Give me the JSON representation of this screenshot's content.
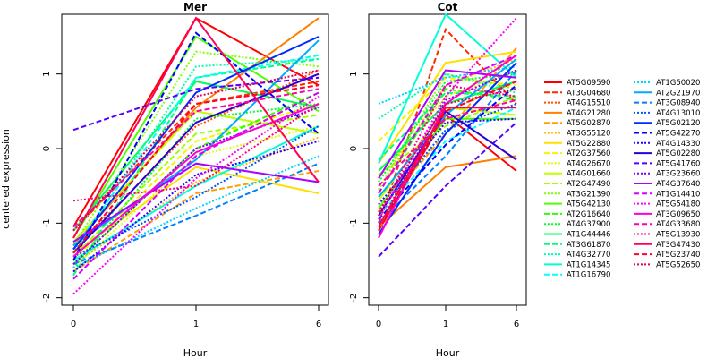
{
  "chart_data": {
    "type": "line",
    "ylabel": "centered expression",
    "xlabel": "Hour",
    "x_ticks": [
      "0",
      "1",
      "6"
    ],
    "y_ticks": [
      "-2",
      "-1",
      "0",
      "1"
    ],
    "ylim": [
      -2.1,
      1.8
    ],
    "legend_position": "right",
    "panels": [
      {
        "title": "Mer"
      },
      {
        "title": "Cot"
      }
    ],
    "series": [
      {
        "name": "AT5G09590",
        "color": "#FF0000",
        "dash": "solid",
        "mer": [
          -1.05,
          1.75,
          0.85
        ],
        "cot": [
          -1.1,
          0.45,
          -0.3
        ]
      },
      {
        "name": "AT3G04680",
        "color": "#FF2A00",
        "dash": "dash",
        "mer": [
          -1.1,
          0.6,
          0.9
        ],
        "cot": [
          -1.0,
          1.6,
          0.6
        ]
      },
      {
        "name": "AT4G15510",
        "color": "#FF4F00",
        "dash": "dot",
        "mer": [
          -1.35,
          0.3,
          1.05
        ],
        "cot": [
          -0.9,
          0.5,
          0.9
        ]
      },
      {
        "name": "AT4G21280",
        "color": "#FF7F00",
        "dash": "solid",
        "mer": [
          -1.3,
          0.55,
          1.75
        ],
        "cot": [
          -1.05,
          -0.25,
          -0.1
        ]
      },
      {
        "name": "AT5G02870",
        "color": "#FF9F00",
        "dash": "dash",
        "mer": [
          -1.65,
          -0.6,
          -0.3
        ],
        "cot": [
          -0.85,
          0.2,
          1.35
        ]
      },
      {
        "name": "AT3G55120",
        "color": "#FFBF00",
        "dash": "dot",
        "mer": [
          -1.55,
          -0.45,
          0.15
        ],
        "cot": [
          -0.55,
          0.85,
          1.2
        ]
      },
      {
        "name": "AT5G22880",
        "color": "#FFDF00",
        "dash": "solid",
        "mer": [
          -1.4,
          -0.25,
          -0.6
        ],
        "cot": [
          -0.2,
          1.15,
          1.3
        ]
      },
      {
        "name": "AT2G37560",
        "color": "#F5F500",
        "dash": "dash",
        "mer": [
          -1.5,
          0.1,
          0.6
        ],
        "cot": [
          0.1,
          0.95,
          0.85
        ]
      },
      {
        "name": "AT4G26670",
        "color": "#DFFF00",
        "dash": "dot",
        "mer": [
          -1.6,
          -0.1,
          0.3
        ],
        "cot": [
          -0.4,
          0.7,
          1.05
        ]
      },
      {
        "name": "AT4G01660",
        "color": "#BFFF00",
        "dash": "solid",
        "mer": [
          -1.25,
          0.5,
          0.2
        ],
        "cot": [
          -0.7,
          0.55,
          0.45
        ]
      },
      {
        "name": "AT2G47490",
        "color": "#9FFF00",
        "dash": "dash",
        "mer": [
          -1.45,
          0.2,
          0.45
        ],
        "cot": [
          -0.35,
          0.3,
          0.7
        ]
      },
      {
        "name": "AT3G21390",
        "color": "#7FFF00",
        "dash": "dot",
        "mer": [
          -1.3,
          1.3,
          1.1
        ],
        "cot": [
          -0.55,
          1.0,
          0.8
        ]
      },
      {
        "name": "AT5G42130",
        "color": "#4FFF00",
        "dash": "solid",
        "mer": [
          -1.2,
          1.5,
          0.5
        ],
        "cot": [
          -0.8,
          0.4,
          0.4
        ]
      },
      {
        "name": "AT2G16640",
        "color": "#2AFF00",
        "dash": "dash",
        "mer": [
          -1.55,
          0.0,
          0.75
        ],
        "cot": [
          -0.6,
          0.8,
          0.65
        ]
      },
      {
        "name": "AT4G37900",
        "color": "#00FF2A",
        "dash": "dot",
        "mer": [
          -1.6,
          0.4,
          0.6
        ],
        "cot": [
          -0.45,
          0.9,
          1.0
        ]
      },
      {
        "name": "AT1G44446",
        "color": "#00FF55",
        "dash": "solid",
        "mer": [
          -1.1,
          0.9,
          0.55
        ],
        "cot": [
          -0.3,
          0.6,
          0.9
        ]
      },
      {
        "name": "AT3G61870",
        "color": "#00FF7F",
        "dash": "dash",
        "mer": [
          -1.7,
          0.95,
          1.2
        ],
        "cot": [
          -0.15,
          0.75,
          0.7
        ]
      },
      {
        "name": "AT4G32770",
        "color": "#00FFAA",
        "dash": "dot",
        "mer": [
          -1.4,
          1.1,
          1.2
        ],
        "cot": [
          0.4,
          1.0,
          0.75
        ]
      },
      {
        "name": "AT1G14345",
        "color": "#00FFD4",
        "dash": "solid",
        "mer": [
          -1.5,
          -0.5,
          0.3
        ],
        "cot": [
          -0.2,
          1.8,
          0.95
        ]
      },
      {
        "name": "AT1G16790",
        "color": "#00FFFF",
        "dash": "dash",
        "mer": [
          -1.35,
          0.95,
          1.25
        ],
        "cot": [
          -0.9,
          0.1,
          0.55
        ]
      },
      {
        "name": "AT1G50020",
        "color": "#00D4FF",
        "dash": "dot",
        "mer": [
          -1.6,
          -0.8,
          -0.1
        ],
        "cot": [
          0.6,
          0.95,
          1.1
        ]
      },
      {
        "name": "AT2G21970",
        "color": "#00AAFF",
        "dash": "solid",
        "mer": [
          -1.3,
          -0.15,
          1.45
        ],
        "cot": [
          -0.65,
          0.45,
          1.2
        ]
      },
      {
        "name": "AT3G08940",
        "color": "#007FFF",
        "dash": "dash",
        "mer": [
          -1.55,
          -0.9,
          -0.2
        ],
        "cot": [
          -1.0,
          -0.1,
          1.05
        ]
      },
      {
        "name": "AT4G13010",
        "color": "#0055FF",
        "dash": "dot",
        "mer": [
          -1.45,
          -0.65,
          0.3
        ],
        "cot": [
          -0.85,
          0.25,
          0.6
        ]
      },
      {
        "name": "AT5G02120",
        "color": "#002AFF",
        "dash": "solid",
        "mer": [
          -1.35,
          0.75,
          1.5
        ],
        "cot": [
          -1.15,
          0.2,
          1.15
        ]
      },
      {
        "name": "AT5G42270",
        "color": "#0000FF",
        "dash": "dash",
        "mer": [
          -1.5,
          1.55,
          0.2
        ],
        "cot": [
          -0.95,
          0.05,
          0.85
        ]
      },
      {
        "name": "AT4G14330",
        "color": "#2A00FF",
        "dash": "dot",
        "mer": [
          -1.65,
          -0.35,
          0.1
        ],
        "cot": [
          -0.75,
          0.35,
          0.4
        ]
      },
      {
        "name": "AT5G02280",
        "color": "#2A00D4",
        "dash": "solid",
        "mer": [
          -1.4,
          0.35,
          1.0
        ],
        "cot": [
          -0.9,
          0.5,
          -0.15
        ]
      },
      {
        "name": "AT5G41760",
        "color": "#5500FF",
        "dash": "dash",
        "mer": [
          0.25,
          0.8,
          0.95
        ],
        "cot": [
          -1.45,
          -0.5,
          0.35
        ]
      },
      {
        "name": "AT3G23660",
        "color": "#7F00FF",
        "dash": "dot",
        "mer": [
          -1.55,
          0.0,
          0.55
        ],
        "cot": [
          -1.05,
          0.65,
          1.05
        ]
      },
      {
        "name": "AT4G37640",
        "color": "#AA00FF",
        "dash": "solid",
        "mer": [
          -1.25,
          -0.2,
          -0.45
        ],
        "cot": [
          -0.4,
          1.05,
          0.95
        ]
      },
      {
        "name": "AT1G14410",
        "color": "#D400FF",
        "dash": "dash",
        "mer": [
          -1.75,
          -0.1,
          0.75
        ],
        "cot": [
          -0.6,
          0.85,
          1.25
        ]
      },
      {
        "name": "AT5G54180",
        "color": "#FF00FF",
        "dash": "dot",
        "mer": [
          -1.95,
          -0.4,
          0.7
        ],
        "cot": [
          -0.95,
          0.7,
          1.75
        ]
      },
      {
        "name": "AT3G09650",
        "color": "#FF00D4",
        "dash": "solid",
        "mer": [
          -1.45,
          -0.05,
          0.6
        ],
        "cot": [
          -1.2,
          0.6,
          1.25
        ]
      },
      {
        "name": "AT4G33680",
        "color": "#FF00AA",
        "dash": "dash",
        "mer": [
          -1.05,
          0.5,
          0.8
        ],
        "cot": [
          -0.5,
          0.4,
          0.65
        ]
      },
      {
        "name": "AT5G13930",
        "color": "#FF007F",
        "dash": "dot",
        "mer": [
          -0.7,
          -0.5,
          0.6
        ],
        "cot": [
          -0.9,
          0.85,
          0.7
        ]
      },
      {
        "name": "AT3G47430",
        "color": "#FF0055",
        "dash": "solid",
        "mer": [
          -1.2,
          1.75,
          -0.45
        ],
        "cot": [
          -1.05,
          0.55,
          0.55
        ]
      },
      {
        "name": "AT5G23740",
        "color": "#FF002A",
        "dash": "dash",
        "mer": [
          -1.4,
          0.6,
          0.85
        ],
        "cot": [
          -1.1,
          0.5,
          0.9
        ]
      },
      {
        "name": "AT5G52650",
        "color": "#E60050",
        "dash": "dot",
        "mer": [
          -1.1,
          0.7,
          1.05
        ],
        "cot": [
          -0.85,
          0.6,
          0.8
        ]
      }
    ]
  }
}
